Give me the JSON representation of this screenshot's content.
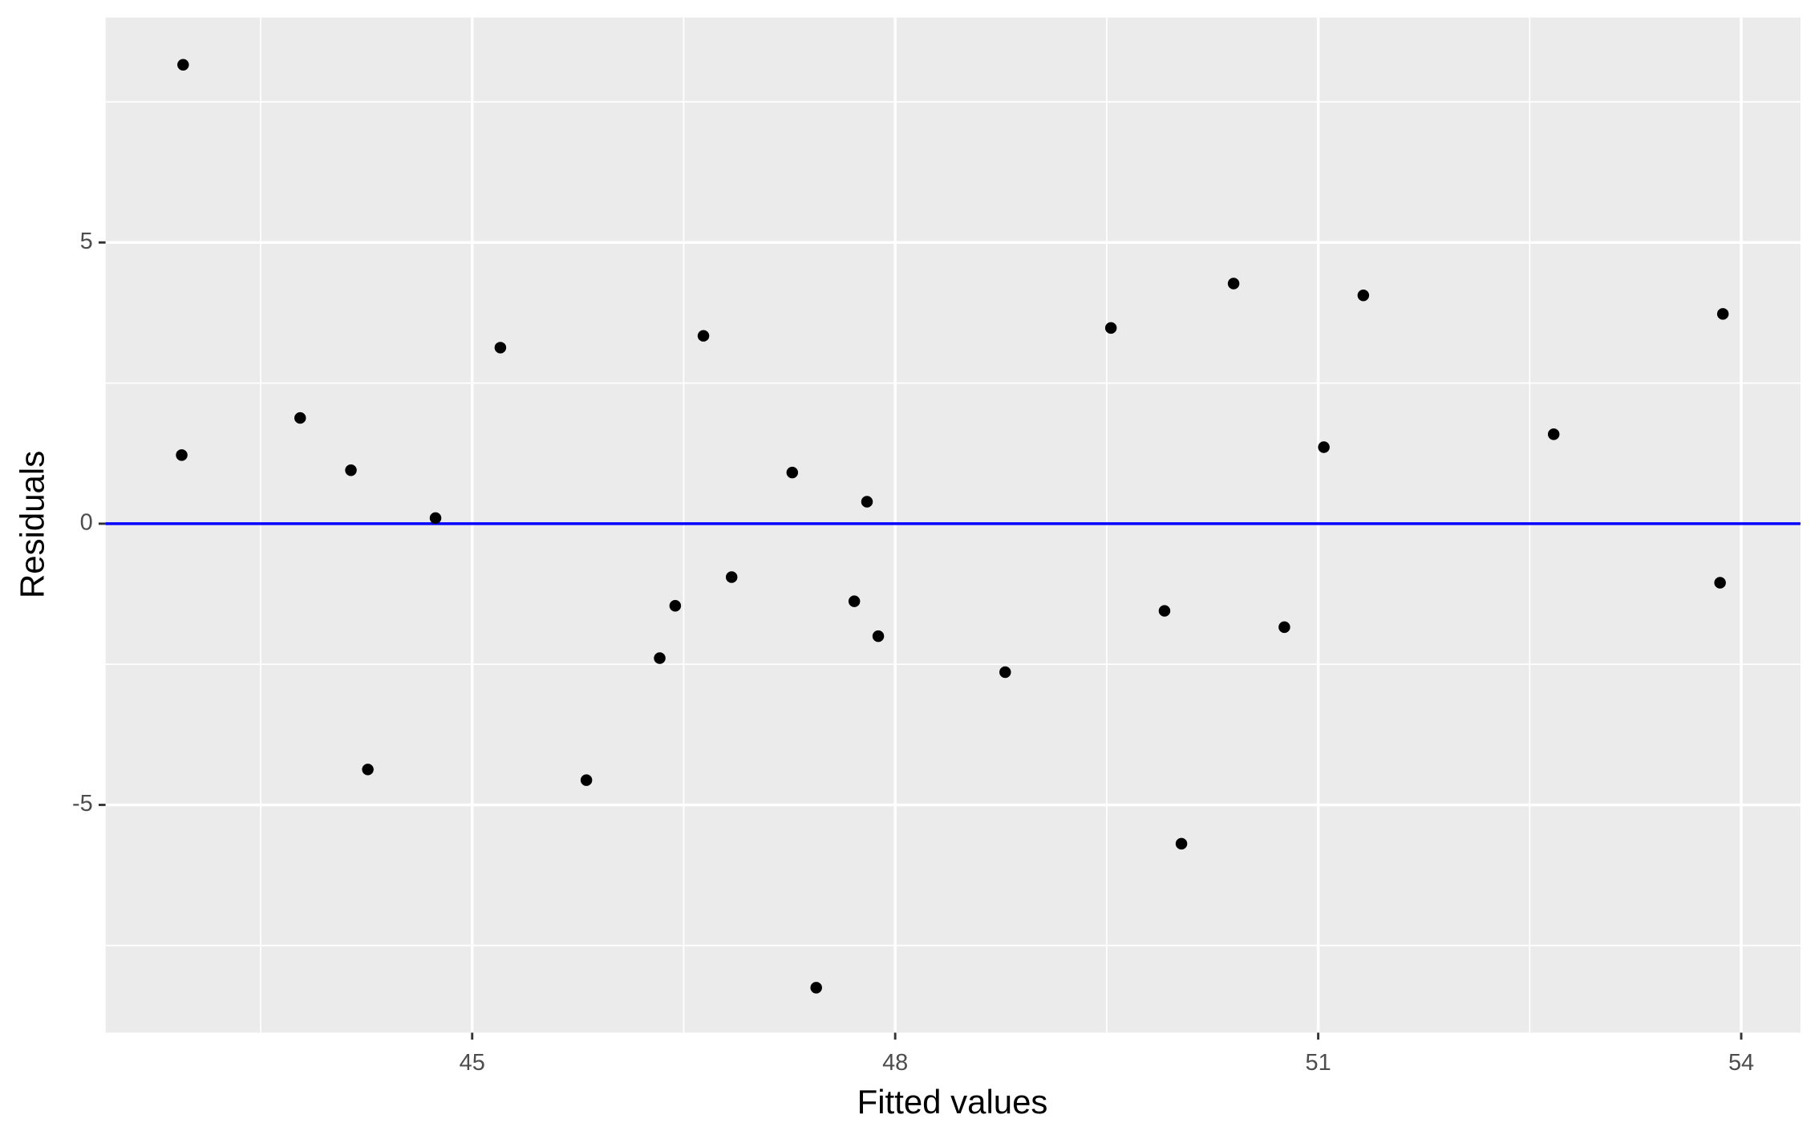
{
  "chart_data": {
    "type": "scatter",
    "xlabel": "Fitted values",
    "ylabel": "Residuals",
    "x": [
      42.95,
      42.94,
      43.78,
      44.14,
      44.26,
      44.74,
      45.2,
      45.81,
      46.33,
      46.44,
      46.64,
      46.84,
      47.27,
      47.44,
      47.71,
      47.8,
      47.88,
      48.78,
      49.53,
      49.91,
      50.03,
      50.4,
      50.76,
      51.04,
      51.32,
      52.67,
      53.85,
      53.87
    ],
    "values": [
      8.16,
      1.22,
      1.88,
      0.95,
      -4.37,
      0.1,
      3.13,
      -4.56,
      -2.39,
      -1.46,
      3.34,
      -0.95,
      0.91,
      -8.25,
      -1.38,
      0.39,
      -2.0,
      -2.64,
      3.48,
      -1.55,
      -5.69,
      4.27,
      -1.84,
      1.36,
      4.06,
      1.59,
      -1.05,
      3.73
    ],
    "color": "#000000",
    "xlim": [
      42.4,
      54.42
    ],
    "ylim": [
      -9.05,
      9.0
    ],
    "xticks": [
      45,
      48,
      51,
      54
    ],
    "yticks": [
      -5,
      0,
      5
    ],
    "xminor": [
      43.5,
      46.5,
      49.5,
      52.5
    ],
    "yminor": [
      -7.5,
      -2.5,
      2.5,
      7.5
    ],
    "grid": true,
    "hline": {
      "y": 0,
      "color": "#0000ff"
    }
  }
}
